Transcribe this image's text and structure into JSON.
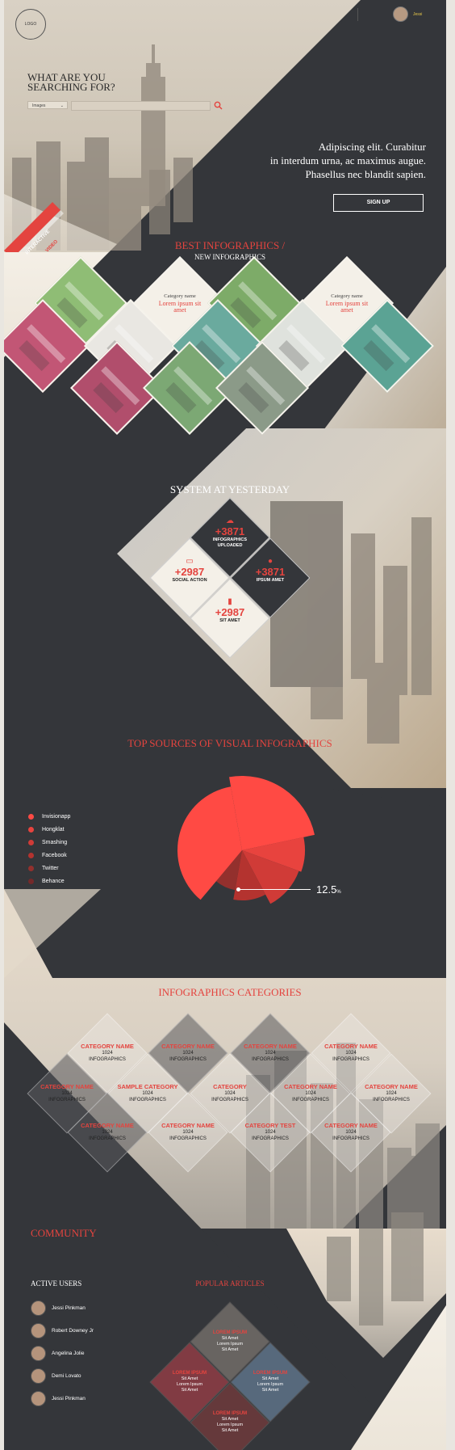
{
  "header": {
    "logo": "LOGO",
    "user_name": "Jessi"
  },
  "search": {
    "title_line1": "WHAT ARE YOU",
    "title_line2": "SEARCHING FOR?",
    "select_value": "Images"
  },
  "hero": {
    "line1": "Adipiscing elit. Curabitur",
    "line2": "in interdum urna, ac maximus augue.",
    "line3": "Phasellus nec blandit sapien.",
    "signup_label": "SIGN UP"
  },
  "side_tabs": {
    "tab1": "INTERACTIVE",
    "tab2": "VIDEO"
  },
  "best": {
    "title": "BEST INFOGRAPHICS /",
    "subtitle": "NEW INFOGRAPHICS"
  },
  "tiles": [
    {
      "name": "Category name",
      "desc": "Lorem ipsum sit amet"
    },
    {
      "name": "Category name",
      "desc": "Lorem ipsum sit amet"
    }
  ],
  "stats": {
    "title": "SYSTEM AT YESTERDAY",
    "items": [
      {
        "value": "+3871",
        "label1": "INFOGRAPHICS",
        "label2": "UPLOADED",
        "icon": "cloud-upload-icon"
      },
      {
        "value": "+2987",
        "label1": "SOCIAL ACTION",
        "label2": "",
        "icon": "monitor-icon"
      },
      {
        "value": "+3871",
        "label1": "IPSUM AMET",
        "label2": "",
        "icon": "chat-bubble-icon"
      },
      {
        "value": "+2987",
        "label1": "SIT AMET",
        "label2": "",
        "icon": "bar-chart-icon"
      }
    ]
  },
  "sources": {
    "title": "TOP SOURCES OF VISUAL INFOGRAPHICS",
    "legend": [
      {
        "label": "Invisionapp",
        "color": "#ff4a44"
      },
      {
        "label": "Hongklat",
        "color": "#e8433e"
      },
      {
        "label": "Smashing",
        "color": "#d03b37"
      },
      {
        "label": "Facebook",
        "color": "#b4332f"
      },
      {
        "label": "Twitter",
        "color": "#93302d"
      },
      {
        "label": "Behance",
        "color": "#74292a"
      }
    ],
    "callout_value": "12.5",
    "callout_unit": "%"
  },
  "categories": {
    "title": "INFOGRAPHICS CATEGORIES",
    "items": [
      {
        "name": "CATEGORY NAME",
        "count": "1024",
        "label": "INFOGRAPHICS"
      },
      {
        "name": "CATEGORY NAME",
        "count": "1024",
        "label": "INFOGRAPHICS"
      },
      {
        "name": "CATEGORY NAME",
        "count": "1024",
        "label": "INFOGRAPHICS"
      },
      {
        "name": "CATEGORY NAME",
        "count": "1024",
        "label": "INFOGRAPHICS"
      },
      {
        "name": "CATEGORY NAME",
        "count": "1024",
        "label": "INFOGRAPHICS"
      },
      {
        "name": "SAMPLE CATEGORY",
        "count": "1024",
        "label": "INFOGRAPHICS"
      },
      {
        "name": "CATEGORY",
        "count": "1024",
        "label": "INFOGRAPHICS"
      },
      {
        "name": "CATEGORY NAME",
        "count": "1024",
        "label": "INFOGRAPHICS"
      },
      {
        "name": "CATEGORY NAME",
        "count": "1024",
        "label": "INFOGRAPHICS"
      },
      {
        "name": "CATEGORY NAME",
        "count": "1024",
        "label": "INFOGRAPHICS"
      },
      {
        "name": "CATEGORY NAME",
        "count": "1024",
        "label": "INFOGRAPHICS"
      },
      {
        "name": "CATEGORY  TEST",
        "count": "1024",
        "label": "INFOGRAPHICS"
      },
      {
        "name": "CATEGORY NAME",
        "count": "1024",
        "label": "INFOGRAPHICS"
      }
    ]
  },
  "community": {
    "title": "COMMUNITY",
    "active_title": "ACTIVE USERS",
    "users": [
      "Jessi Pinkman",
      "Robert Downey Jr",
      "Angelina Jolie",
      "Demi Lovato",
      "Jessi Pinkman"
    ],
    "popular_title": "POPULAR ARTICLES",
    "articles": [
      {
        "title": "LOREM IPSUM",
        "l1": "Sit Amet",
        "l2": "Lorem Ipsum",
        "l3": "Sit Amet"
      },
      {
        "title": "LOREM IPSUM",
        "l1": "Sit Amet",
        "l2": "Lorem Ipsum",
        "l3": "Sit Amet"
      },
      {
        "title": "LOREM IPSUM",
        "l1": "Sit Amet",
        "l2": "Lorem Ipsum",
        "l3": "Sit Amet"
      },
      {
        "title": "LOREM IPSUM",
        "l1": "Sit Amet",
        "l2": "Lorem Ipsum",
        "l3": "Sit Amet"
      }
    ]
  }
}
